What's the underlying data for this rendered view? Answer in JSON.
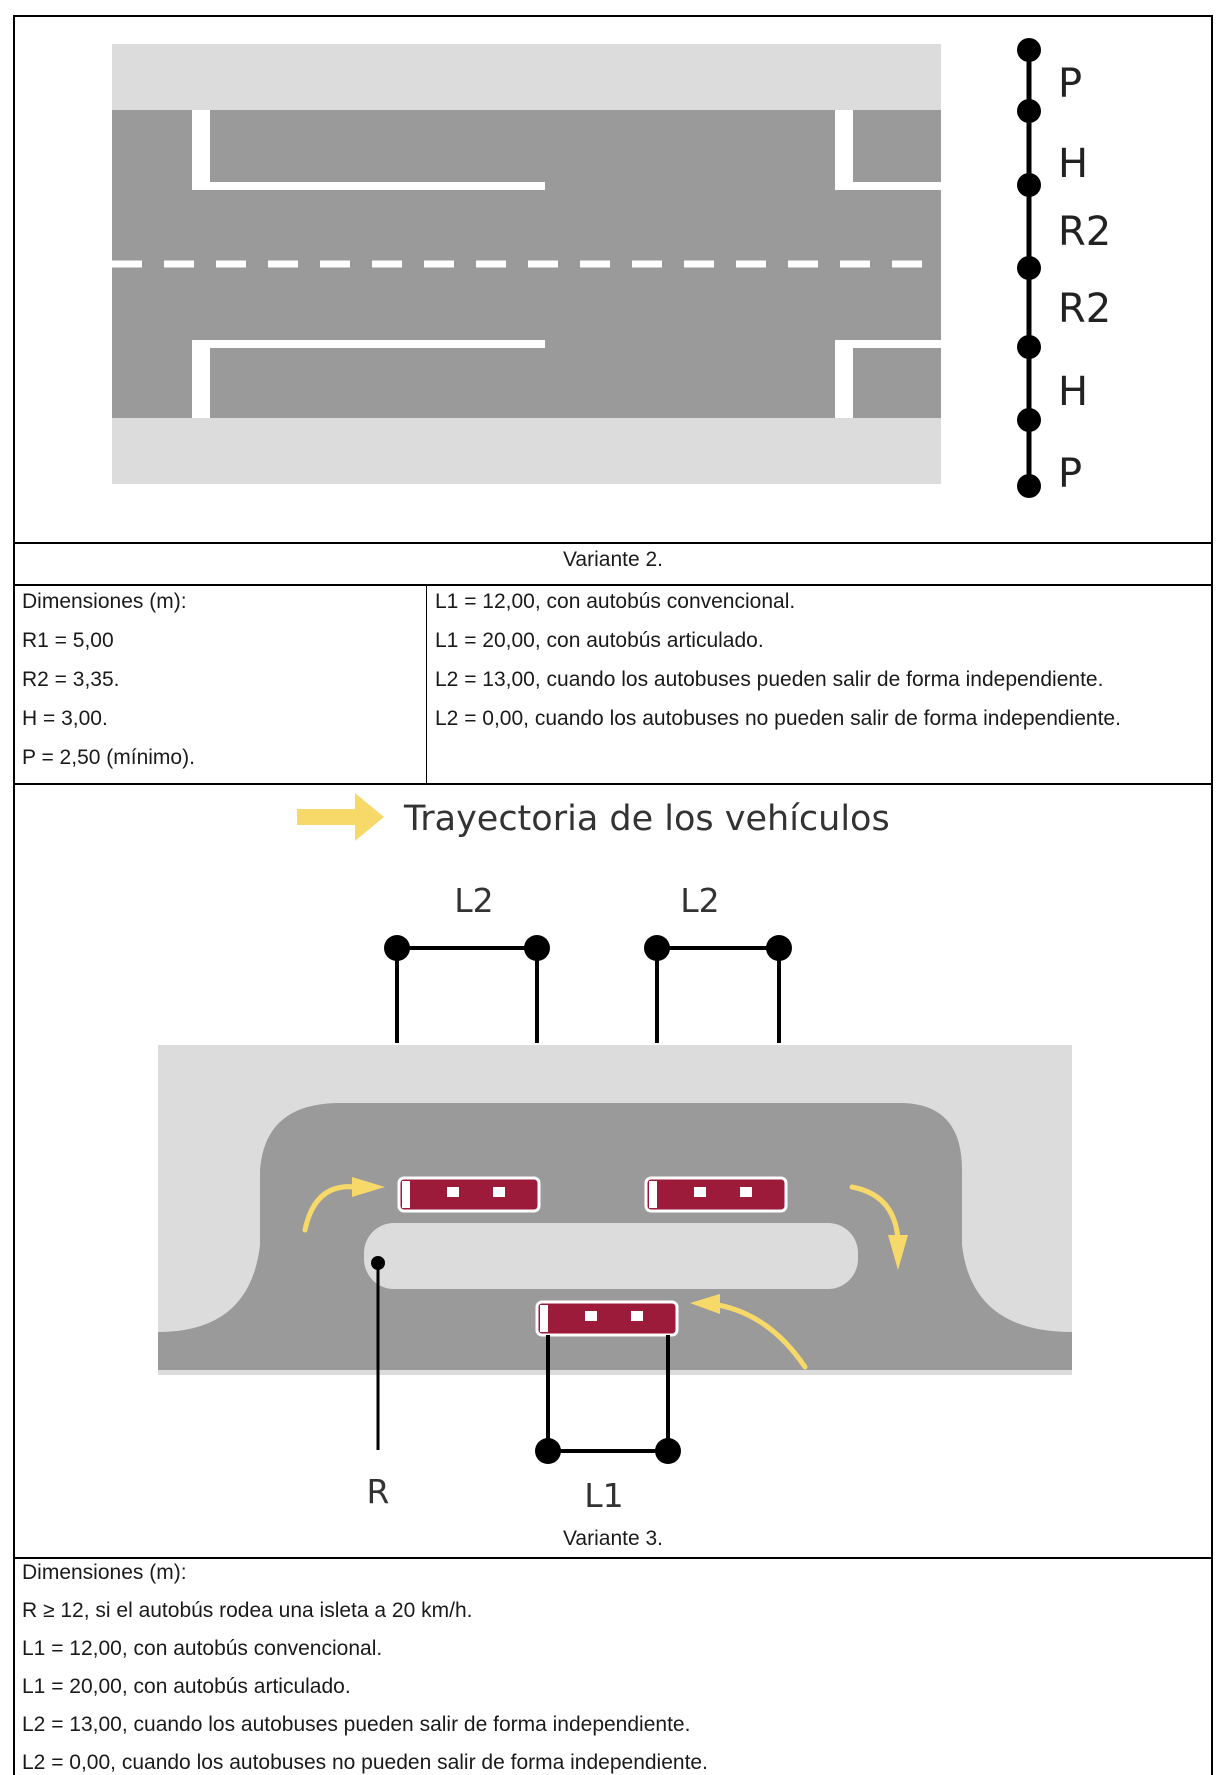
{
  "variant2": {
    "labels": [
      "P",
      "H",
      "R2",
      "R2",
      "H",
      "P"
    ],
    "caption": "Variante 2.",
    "dims_left": [
      "Dimensiones (m):",
      "R1 = 5,00",
      "R2 = 3,35.",
      "H = 3,00.",
      "P = 2,50 (mínimo)."
    ],
    "dims_right": [
      "L1 = 12,00, con autobús convencional.",
      "L1 = 20,00, con autobús articulado.",
      "L2 = 13,00, cuando los autobuses pueden salir de forma independiente.",
      "L2 = 0,00, cuando los autobuses no pueden salir de forma independiente."
    ]
  },
  "variant3": {
    "legend": "Trayectoria de los vehículos",
    "label_l2": "L2",
    "label_r": "R",
    "label_l1": "L1",
    "caption": "Variante 3.",
    "dims": [
      "Dimensiones (m):",
      "R ≥ 12, si el autobús rodea una isleta a 20 km/h.",
      "L1 = 12,00, con autobús convencional.",
      "L1 = 20,00, con autobús articulado.",
      "L2 = 13,00, cuando los autobuses pueden salir de forma independiente.",
      "L2 = 0,00, cuando los autobuses no pueden salir de forma independiente."
    ]
  },
  "colors": {
    "sidewalk": "#dcdcdc",
    "road": "#9a9a9a",
    "bus": "#9c1b3a",
    "arrow": "#f7d96a"
  }
}
